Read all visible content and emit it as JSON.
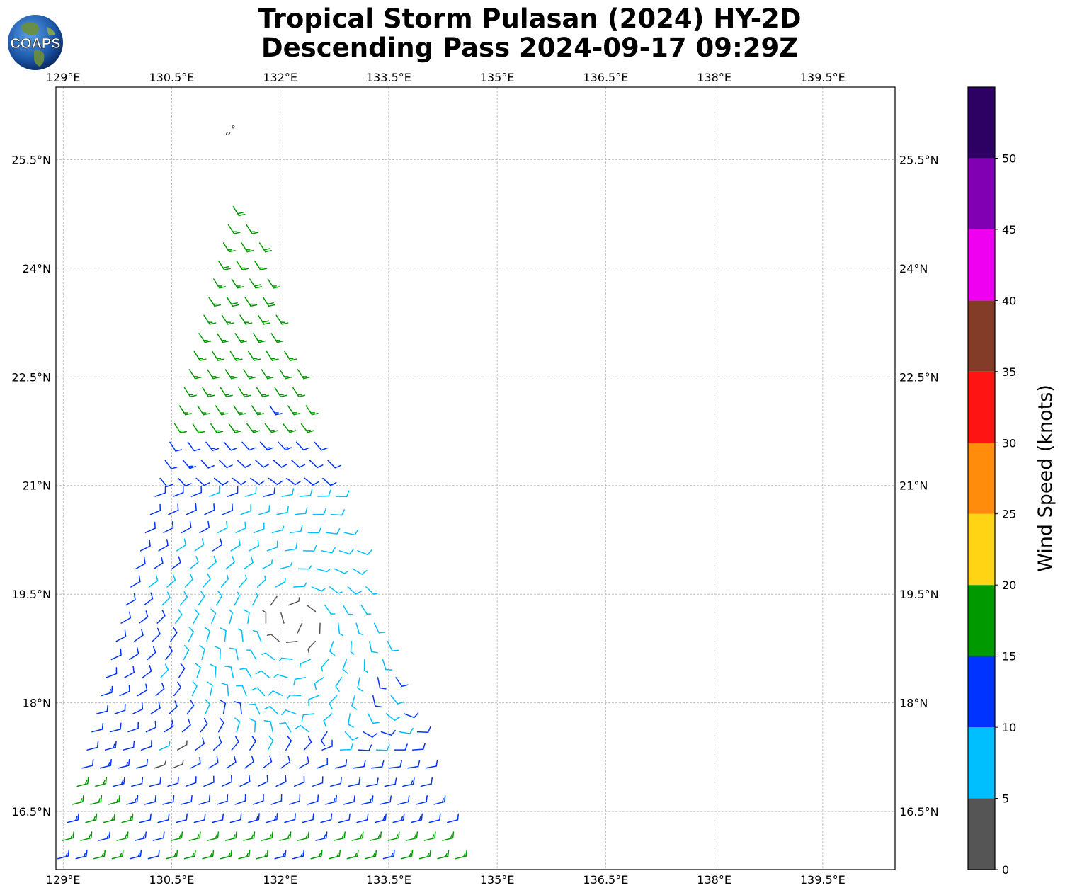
{
  "title_line1": "Tropical Storm Pulasan (2024) HY-2D",
  "title_line2": "Descending Pass 2024-09-17 09:29Z",
  "logo_text": "COAPS",
  "chart_data": {
    "type": "wind-barb-map",
    "title": "Tropical Storm Pulasan (2024) HY-2D Descending Pass 2024-09-17 09:29Z",
    "x_range": [
      128.9,
      140.5
    ],
    "y_range": [
      15.7,
      26.5
    ],
    "x_ticks": [
      129,
      130.5,
      132,
      133.5,
      135,
      136.5,
      138,
      139.5
    ],
    "x_tick_labels": [
      "129°E",
      "130.5°E",
      "132°E",
      "133.5°E",
      "135°E",
      "136.5°E",
      "138°E",
      "139.5°E"
    ],
    "y_ticks": [
      16.5,
      18,
      19.5,
      21,
      22.5,
      24,
      25.5
    ],
    "y_tick_labels": [
      "16.5°N",
      "18°N",
      "19.5°N",
      "21°N",
      "22.5°N",
      "24°N",
      "25.5°N"
    ],
    "grid": true,
    "colorbar": {
      "label": "Wind Speed (knots)",
      "range": [
        0,
        55
      ],
      "bins": [
        {
          "min": 0,
          "max": 5,
          "color": "#555555"
        },
        {
          "min": 5,
          "max": 10,
          "color": "#00bfff"
        },
        {
          "min": 10,
          "max": 15,
          "color": "#0033ff"
        },
        {
          "min": 15,
          "max": 20,
          "color": "#009900"
        },
        {
          "min": 20,
          "max": 25,
          "color": "#ffd414"
        },
        {
          "min": 25,
          "max": 30,
          "color": "#ff8c0a"
        },
        {
          "min": 30,
          "max": 35,
          "color": "#ff1414"
        },
        {
          "min": 35,
          "max": 40,
          "color": "#823c28"
        },
        {
          "min": 40,
          "max": 45,
          "color": "#f000f0"
        },
        {
          "min": 45,
          "max": 50,
          "color": "#8200b4"
        },
        {
          "min": 50,
          "max": 55,
          "color": "#2d0064"
        }
      ],
      "tick_values": [
        0,
        5,
        10,
        15,
        20,
        25,
        30,
        35,
        40,
        45,
        50
      ],
      "tick_labels": [
        "0",
        "5",
        "10",
        "15",
        "20",
        "25",
        "30",
        "35",
        "40",
        "45",
        "50"
      ]
    },
    "storm_center": {
      "lon": 132.2,
      "lat": 19.15
    },
    "swath": {
      "lat_top": 24.85,
      "lat_bottom": 15.75,
      "left_lon_at_top": 131.35,
      "left_lon_at_bottom": 128.9,
      "right_lon_at_top": 131.55,
      "right_lon_at_bottom": 134.55
    },
    "islands": [
      {
        "lon": 131.28,
        "lat": 25.86
      },
      {
        "lon": 131.35,
        "lat": 25.95
      }
    ]
  }
}
